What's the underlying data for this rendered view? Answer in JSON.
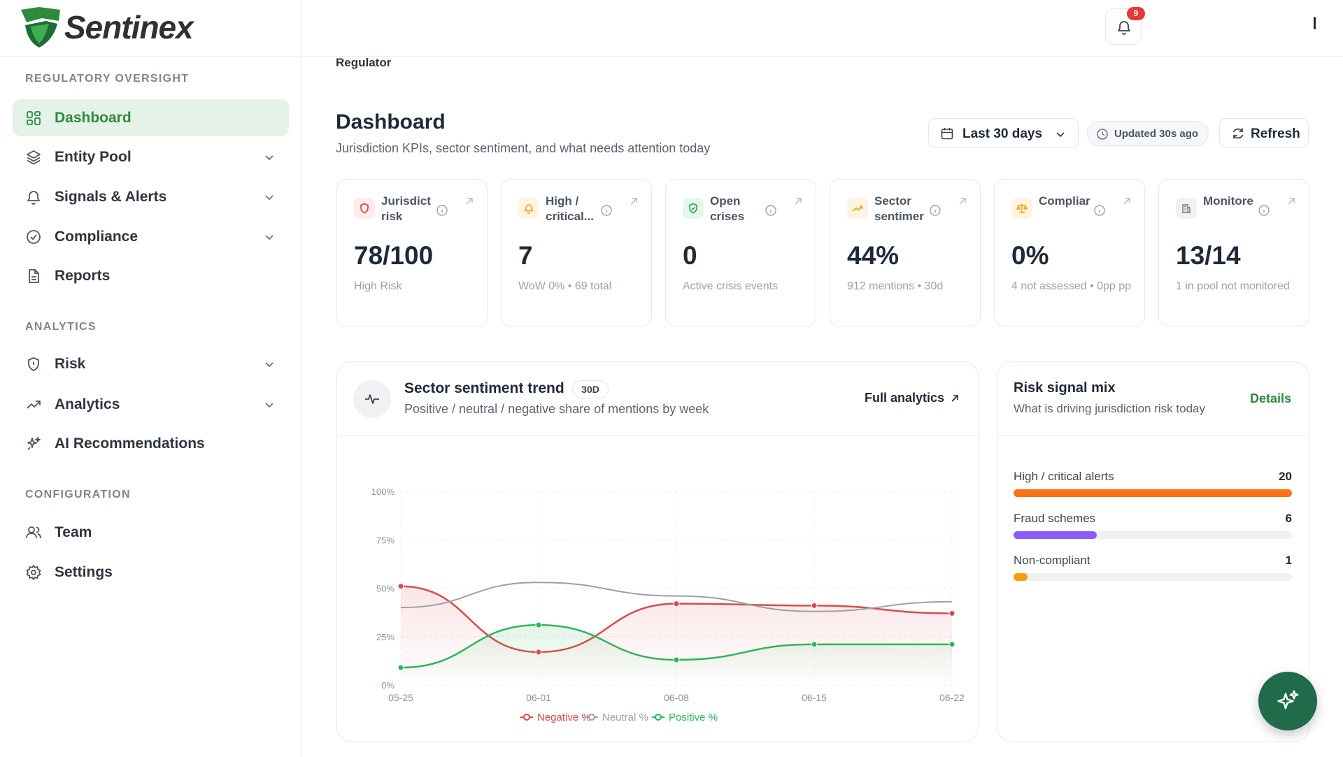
{
  "app": {
    "name": "Sentinex"
  },
  "sidebar": {
    "sections": [
      {
        "label": "REGULATORY OVERSIGHT"
      },
      {
        "label": "ANALYTICS"
      },
      {
        "label": "CONFIGURATION"
      }
    ],
    "items": [
      {
        "label": "Dashboard",
        "icon": "grid-icon",
        "active": true
      },
      {
        "label": "Entity Pool",
        "icon": "layers-icon",
        "chevron": true
      },
      {
        "label": "Signals & Alerts",
        "icon": "bell-icon",
        "chevron": true
      },
      {
        "label": "Compliance",
        "icon": "check-circle-icon",
        "chevron": true
      },
      {
        "label": "Reports",
        "icon": "document-icon"
      },
      {
        "label": "Risk",
        "icon": "shield-icon",
        "chevron": true
      },
      {
        "label": "Analytics",
        "icon": "trend-icon",
        "chevron": true
      },
      {
        "label": "AI Recommendations",
        "icon": "sparkles-icon"
      },
      {
        "label": "Team",
        "icon": "users-icon"
      },
      {
        "label": "Settings",
        "icon": "gear-icon"
      }
    ]
  },
  "topbar": {
    "notifications_count": "9"
  },
  "page": {
    "breadcrumb": "Regulator",
    "title": "Dashboard",
    "subtitle": "Jurisdiction KPIs, sector sentiment, and what needs attention today"
  },
  "controls": {
    "range_label": "Last 30 days",
    "updated_label": "Updated 30s ago",
    "refresh_label": "Refresh"
  },
  "kpis": [
    {
      "label": "Jurisdict\nrisk",
      "value": "78/100",
      "sub": "High Risk",
      "icon": "shield-icon",
      "color": "#e53935",
      "bg": "#fdecec"
    },
    {
      "label": "High /\ncritical...",
      "value": "7",
      "sub": "WoW 0% • 69 total",
      "icon": "bell-icon",
      "color": "#f59e0b",
      "bg": "#fef4e2"
    },
    {
      "label": "Open\ncrises",
      "value": "0",
      "sub": "Active crisis events",
      "icon": "shield-check-icon",
      "color": "#22a55a",
      "bg": "#e6f6ec"
    },
    {
      "label": "Sector\nsentimer",
      "value": "44%",
      "sub": "912 mentions • 30d",
      "icon": "trend-up-icon",
      "color": "#f59e0b",
      "bg": "#fef4e2"
    },
    {
      "label": "Compliar",
      "value": "0%",
      "sub": "4 not assessed • 0pp pp",
      "icon": "scale-icon",
      "color": "#f59e0b",
      "bg": "#fef4e2"
    },
    {
      "label": "Monitore",
      "value": "13/14",
      "sub": "1 in pool not monitored",
      "icon": "building-icon",
      "color": "#6b7280",
      "bg": "#f1f2f4"
    }
  ],
  "sentiment_card": {
    "title": "Sector sentiment trend",
    "badge": "30D",
    "subtitle": "Positive / neutral / negative share of mentions by week",
    "link": "Full analytics"
  },
  "chart_data": {
    "type": "line",
    "x": [
      "05-25",
      "06-01",
      "06-08",
      "06-15",
      "06-22"
    ],
    "y_ticks": [
      "0%",
      "25%",
      "50%",
      "75%",
      "100%"
    ],
    "ylim": [
      0,
      100
    ],
    "grid": true,
    "legend_position": "bottom",
    "series": [
      {
        "name": "Negative %",
        "values": [
          51,
          17,
          42,
          41,
          37
        ],
        "color": "#dc4a4a"
      },
      {
        "name": "Neutral %",
        "values": [
          40,
          53,
          46,
          38,
          43
        ],
        "color": "#9aa0a8"
      },
      {
        "name": "Positive %",
        "values": [
          9,
          31,
          13,
          21,
          21
        ],
        "color": "#2fb559"
      }
    ]
  },
  "risk_mix": {
    "title": "Risk signal mix",
    "subtitle": "What is driving jurisdiction risk today",
    "link": "Details",
    "rows": [
      {
        "label": "High / critical alerts",
        "value": "20",
        "fraction": 1.0,
        "color": "#f97316"
      },
      {
        "label": "Fraud schemes",
        "value": "6",
        "fraction": 0.3,
        "color": "#8b5cf6"
      },
      {
        "label": "Non-compliant",
        "value": "1",
        "fraction": 0.05,
        "color": "#f59e0b"
      }
    ]
  }
}
